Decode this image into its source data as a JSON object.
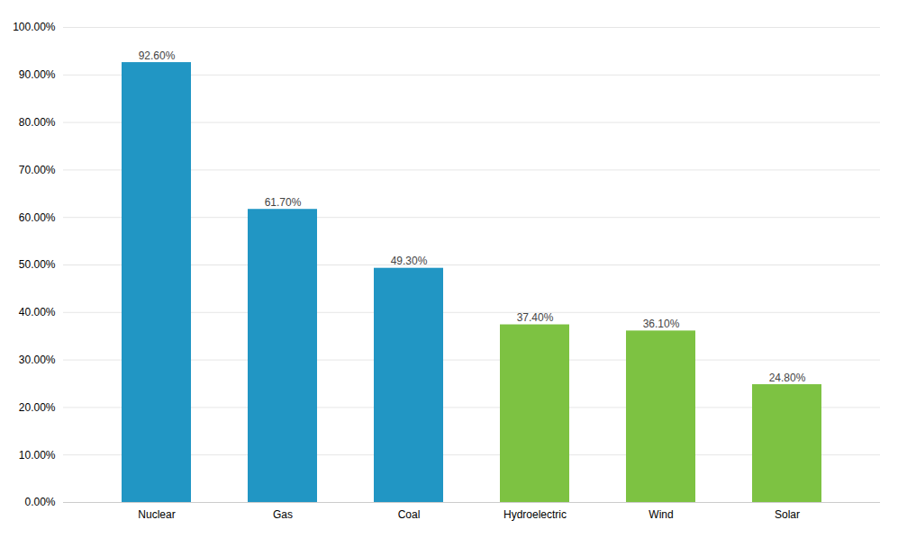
{
  "chart_data": {
    "type": "bar",
    "categories": [
      "Nuclear",
      "Gas",
      "Coal",
      "Hydroelectric",
      "Wind",
      "Solar"
    ],
    "values": [
      0.926,
      0.617,
      0.493,
      0.374,
      0.361,
      0.248
    ],
    "value_labels": [
      "92.60%",
      "61.70%",
      "49.30%",
      "37.40%",
      "36.10%",
      "24.80%"
    ],
    "colors": [
      "#2196C4",
      "#2196C4",
      "#2196C4",
      "#7DC242",
      "#7DC242",
      "#7DC242"
    ],
    "ylim": [
      0,
      1.0
    ],
    "yticks": [
      {
        "value": 0.0,
        "label": "0.00%"
      },
      {
        "value": 0.1,
        "label": "10.00%"
      },
      {
        "value": 0.2,
        "label": "20.00%"
      },
      {
        "value": 0.3,
        "label": "30.00%"
      },
      {
        "value": 0.4,
        "label": "40.00%"
      },
      {
        "value": 0.5,
        "label": "50.00%"
      },
      {
        "value": 0.6,
        "label": "60.00%"
      },
      {
        "value": 0.7,
        "label": "70.00%"
      },
      {
        "value": 0.8,
        "label": "80.00%"
      },
      {
        "value": 0.9,
        "label": "90.00%"
      },
      {
        "value": 1.0,
        "label": "100.00%"
      }
    ],
    "grid": true,
    "data_labels": true
  }
}
